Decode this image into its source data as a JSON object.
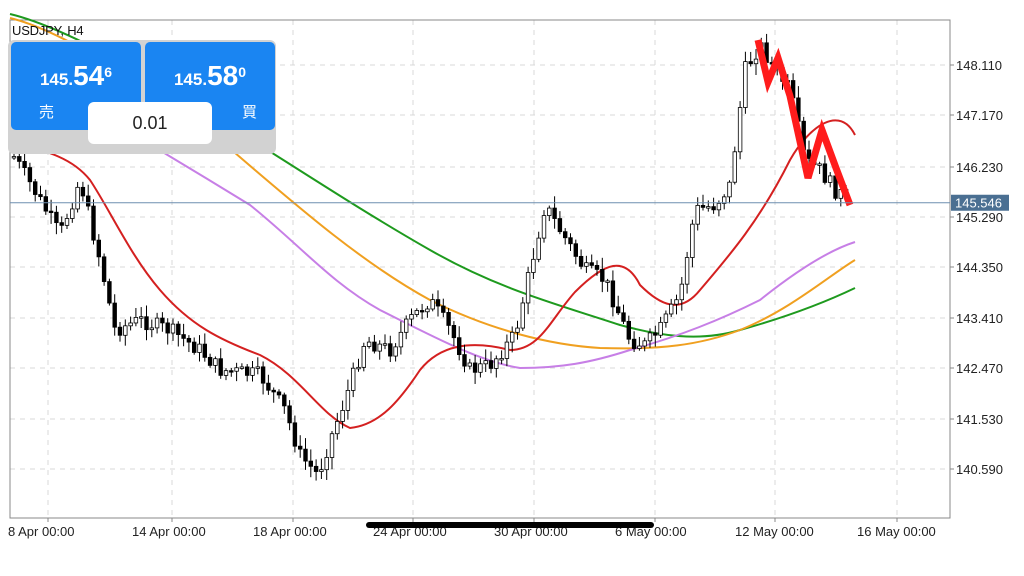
{
  "symbol": "USDJPY, H4",
  "trade_panel": {
    "sell": {
      "small": "145.",
      "big": "54",
      "sup": "6",
      "label": "売"
    },
    "buy": {
      "small": "145.",
      "big": "58",
      "sup": "0",
      "label": "買"
    },
    "lot": "0.01"
  },
  "y_axis": {
    "ticks": [
      "148.110",
      "147.170",
      "146.230",
      "145.290",
      "144.350",
      "143.410",
      "142.470",
      "141.530",
      "140.590"
    ],
    "current_price": "145.546"
  },
  "x_axis": {
    "ticks": [
      "8 Apr 00:00",
      "14 Apr 00:00",
      "18 Apr 00:00",
      "24 Apr 00:00",
      "30 Apr 00:00",
      "6 May 00:00",
      "12 May 00:00",
      "16 May 00:00"
    ]
  },
  "colors": {
    "ma_red": "#d42020",
    "ma_violet": "#c77fe6",
    "ma_orange": "#f0a020",
    "ma_green": "#1e9a1e",
    "annotation": "#ff1c1c",
    "current_line": "#6f8fb0",
    "current_tag": "#4a6f92",
    "button": "#1a85f2"
  },
  "chart_data": {
    "type": "candlestick",
    "ylim": [
      140.0,
      148.6
    ],
    "grid": true,
    "current_price": 145.546
  }
}
